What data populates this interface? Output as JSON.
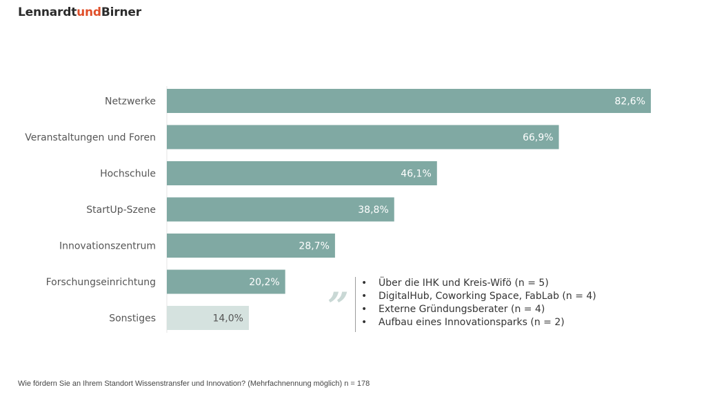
{
  "logo": {
    "part1": "Lennardt",
    "part2": "und",
    "part3": "Birner"
  },
  "colors": {
    "bar": "#80a9a3",
    "bar_other": "#d5e2df",
    "accent": "#e0502b"
  },
  "chart_data": {
    "type": "bar",
    "orientation": "horizontal",
    "categories": [
      "Netzwerke",
      "Veranstaltungen und Foren",
      "Hochschule",
      "StartUp-Szene",
      "Innovationszentrum",
      "Forschungseinrichtung",
      "Sonstiges"
    ],
    "values": [
      82.6,
      66.9,
      46.1,
      38.8,
      28.7,
      20.2,
      14.0
    ],
    "value_labels": [
      "82,6%",
      "66,9%",
      "46,1%",
      "38,8%",
      "28,7%",
      "20,2%",
      "14,0%"
    ],
    "title": "",
    "xlabel": "",
    "ylabel": "",
    "xlim": [
      0,
      82.6
    ],
    "grid": false,
    "legend": "none"
  },
  "sonstiges_detail": {
    "quote_glyph": "„",
    "bullet": "•",
    "items": [
      "Über die IHK und Kreis-Wifö (n = 5)",
      "DigitalHub, Coworking Space, FabLab (n = 4)",
      "Externe Gründungsberater (n = 4)",
      "Aufbau eines Innovationsparks (n = 2)"
    ]
  },
  "footnote": "Wie fördern Sie an Ihrem Standort Wissenstransfer und Innovation? (Mehrfachnennung möglich) n = 178"
}
